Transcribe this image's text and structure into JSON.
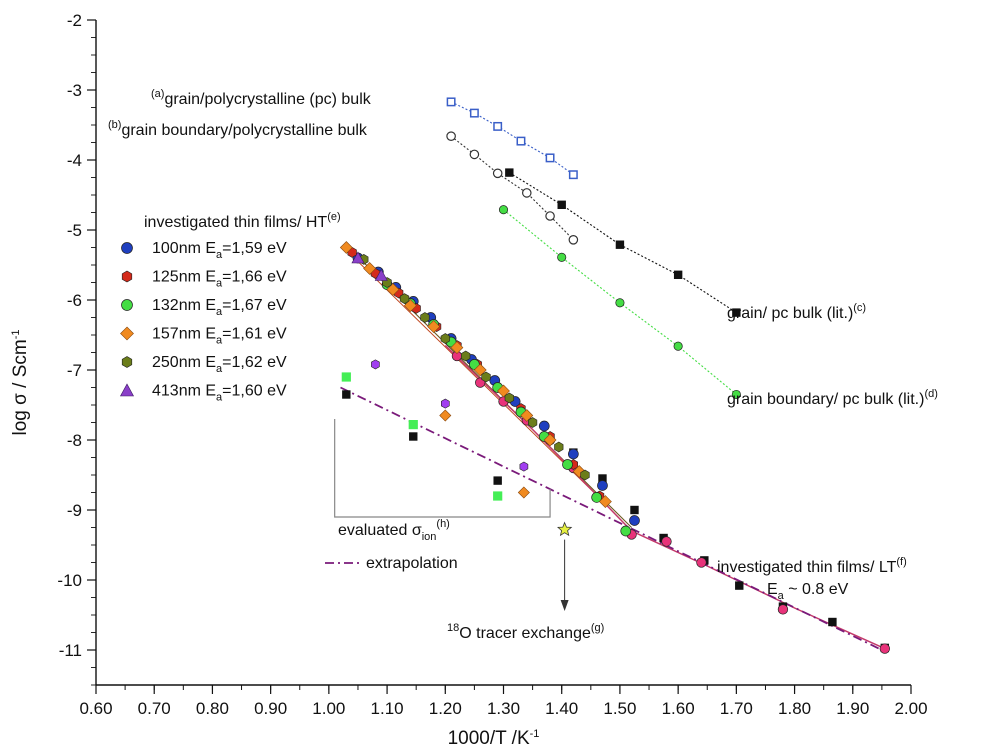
{
  "chart_data": {
    "type": "scatter",
    "x_label": "1000/T /K",
    "x_label_sup": "-1",
    "y_label": "log σ / Scm",
    "y_label_sup": "-1",
    "xlim": [
      0.6,
      2.0
    ],
    "ylim": [
      -11.5,
      -2
    ],
    "x_ticks": [
      "0.60",
      "0.70",
      "0.80",
      "0.90",
      "1.00",
      "1.10",
      "1.20",
      "1.30",
      "1.40",
      "1.50",
      "1.60",
      "1.70",
      "1.80",
      "1.90",
      "2.00"
    ],
    "y_ticks": [
      "-2",
      "-3",
      "-4",
      "-5",
      "-6",
      "-7",
      "-8",
      "-9",
      "-10",
      "-11"
    ],
    "grid": false,
    "legend": {
      "title": "investigated thin films/ HT",
      "title_sup": "(e)",
      "position": "left",
      "entries": [
        {
          "label": "100nm E",
          "sub": "a",
          "tail": "=1,59 eV",
          "color": "#1f3fbf",
          "marker": "circle"
        },
        {
          "label": "125nm E",
          "sub": "a",
          "tail": "=1,66 eV",
          "color": "#d42a1a",
          "marker": "hexagon"
        },
        {
          "label": "132nm E",
          "sub": "a",
          "tail": "=1,67 eV",
          "color": "#44dd44",
          "marker": "circle"
        },
        {
          "label": "157nm E",
          "sub": "a",
          "tail": "=1,61 eV",
          "color": "#f08a20",
          "marker": "diamond"
        },
        {
          "label": "250nm E",
          "sub": "a",
          "tail": "=1,62 eV",
          "color": "#6b7d1a",
          "marker": "hexagon"
        },
        {
          "label": "413nm E",
          "sub": "a",
          "tail": "=1,60 eV",
          "color": "#8a3fc8",
          "marker": "triangle"
        }
      ]
    },
    "reference_series": [
      {
        "label": "grain/polycrystalline (pc) bulk",
        "pre": "(a)",
        "color": "#3a5fc8",
        "marker": "square-open",
        "x": [
          1.21,
          1.25,
          1.29,
          1.33,
          1.38,
          1.42
        ],
        "y": [
          -3.17,
          -3.33,
          -3.52,
          -3.73,
          -3.97,
          -4.21
        ]
      },
      {
        "label": "grain boundary/polycrystalline bulk",
        "pre": "(b)",
        "color": "#333333",
        "marker": "circle-open",
        "x": [
          1.21,
          1.25,
          1.29,
          1.34,
          1.38,
          1.42
        ],
        "y": [
          -3.66,
          -3.92,
          -4.19,
          -4.47,
          -4.8,
          -5.14
        ]
      },
      {
        "label": "grain/ pc bulk (lit.)",
        "post": "(c)",
        "color": "#111111",
        "marker": "square",
        "x": [
          1.31,
          1.4,
          1.5,
          1.6,
          1.7
        ],
        "y": [
          -4.18,
          -4.64,
          -5.21,
          -5.64,
          -6.18
        ]
      },
      {
        "label": "grain boundary/ pc bulk (lit.)",
        "post": "(d)",
        "color": "#44dd44",
        "marker": "circle",
        "x": [
          1.3,
          1.4,
          1.5,
          1.6,
          1.7
        ],
        "y": [
          -4.71,
          -5.39,
          -6.04,
          -6.66,
          -7.35
        ]
      }
    ],
    "ht_series": [
      {
        "name": "100nm",
        "color": "#1f3fbf",
        "marker": "circle",
        "x": [
          1.05,
          1.085,
          1.115,
          1.145,
          1.175,
          1.21,
          1.245,
          1.285,
          1.32,
          1.37,
          1.42,
          1.47,
          1.525
        ],
        "y": [
          -5.4,
          -5.6,
          -5.82,
          -6.02,
          -6.25,
          -6.55,
          -6.85,
          -7.15,
          -7.45,
          -7.8,
          -8.2,
          -8.65,
          -9.15
        ]
      },
      {
        "name": "125nm",
        "color": "#d42a1a",
        "marker": "hexagon",
        "x": [
          1.04,
          1.08,
          1.12,
          1.15,
          1.185,
          1.22,
          1.255,
          1.29,
          1.33,
          1.38,
          1.42,
          1.465
        ],
        "y": [
          -5.32,
          -5.62,
          -5.9,
          -6.12,
          -6.38,
          -6.65,
          -6.92,
          -7.25,
          -7.55,
          -7.95,
          -8.35,
          -8.8
        ]
      },
      {
        "name": "132nm",
        "color": "#44dd44",
        "marker": "circle",
        "x": [
          1.1,
          1.14,
          1.18,
          1.21,
          1.25,
          1.29,
          1.33,
          1.37,
          1.41,
          1.46,
          1.51
        ],
        "y": [
          -5.78,
          -6.05,
          -6.35,
          -6.6,
          -6.92,
          -7.25,
          -7.6,
          -7.95,
          -8.35,
          -8.82,
          -9.3
        ]
      },
      {
        "name": "157nm",
        "color": "#f08a20",
        "marker": "diamond",
        "x": [
          1.03,
          1.07,
          1.11,
          1.14,
          1.18,
          1.22,
          1.26,
          1.3,
          1.34,
          1.38,
          1.43,
          1.475
        ],
        "y": [
          -5.25,
          -5.55,
          -5.85,
          -6.08,
          -6.38,
          -6.68,
          -7.0,
          -7.3,
          -7.65,
          -8.0,
          -8.45,
          -8.88
        ]
      },
      {
        "name": "250nm",
        "color": "#6b7d1a",
        "marker": "hexagon",
        "x": [
          1.06,
          1.1,
          1.13,
          1.165,
          1.2,
          1.235,
          1.27,
          1.31,
          1.35,
          1.395,
          1.44
        ],
        "y": [
          -5.42,
          -5.75,
          -5.98,
          -6.25,
          -6.55,
          -6.8,
          -7.1,
          -7.4,
          -7.75,
          -8.1,
          -8.5
        ]
      },
      {
        "name": "413nm",
        "color": "#8a3fc8",
        "marker": "triangle",
        "x": [
          1.05,
          1.09
        ],
        "y": [
          -5.4,
          -5.65
        ]
      }
    ],
    "lt_series": {
      "color": "#e8337a",
      "marker": "circle",
      "x": [
        1.22,
        1.26,
        1.3,
        1.34,
        1.38,
        1.42,
        1.52,
        1.58,
        1.64,
        1.78,
        1.955
      ],
      "y": [
        -6.8,
        -7.18,
        -7.45,
        -7.72,
        -8.0,
        -8.4,
        -9.35,
        -9.45,
        -9.75,
        -10.42,
        -10.98
      ]
    },
    "black_squares": {
      "x": [
        1.03,
        1.145,
        1.29,
        1.42,
        1.47,
        1.525,
        1.575,
        1.645,
        1.705,
        1.78,
        1.865,
        1.955
      ],
      "y": [
        -7.35,
        -7.95,
        -8.58,
        -8.18,
        -8.55,
        -9.0,
        -9.4,
        -9.72,
        -10.08,
        -10.38,
        -10.6,
        -10.97
      ]
    },
    "sigma_ion_points": [
      {
        "x": 1.03,
        "y": -7.1,
        "color": "#44ee55",
        "marker": "square"
      },
      {
        "x": 1.145,
        "y": -7.78,
        "color": "#44ee55",
        "marker": "square"
      },
      {
        "x": 1.08,
        "y": -6.92,
        "color": "#a13ff0",
        "marker": "hexagon"
      },
      {
        "x": 1.2,
        "y": -7.48,
        "color": "#a13ff0",
        "marker": "hexagon"
      },
      {
        "x": 1.335,
        "y": -8.38,
        "color": "#a13ff0",
        "marker": "hexagon"
      },
      {
        "x": 1.2,
        "y": -7.65,
        "color": "#f08a20",
        "marker": "diamond"
      },
      {
        "x": 1.335,
        "y": -8.75,
        "color": "#f08a20",
        "marker": "diamond"
      },
      {
        "x": 1.29,
        "y": -8.8,
        "color": "#44ee55",
        "marker": "square"
      }
    ],
    "extrapolation": {
      "label": "extrapolation",
      "color": "#7a1a7a",
      "x": [
        1.02,
        1.95
      ],
      "y": [
        -7.25,
        -11.0
      ]
    },
    "tracer_point": {
      "x": 1.405,
      "y": -9.28,
      "color": "#e6f040"
    },
    "annotations": {
      "evaluated": "evaluated σ",
      "evaluated_sub": "ion",
      "evaluated_sup": "(h)",
      "tracer": "O tracer exchange",
      "tracer_pre": "18",
      "tracer_sup": "(g)",
      "lt_title": "investigated thin films/ LT",
      "lt_sup": "(f)",
      "lt_ea": "E",
      "lt_ea_sub": "a",
      "lt_ea_tail": " ~ 0.8 eV"
    }
  }
}
